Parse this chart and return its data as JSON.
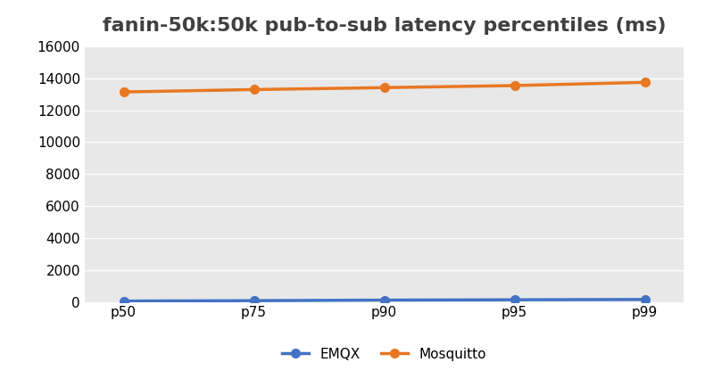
{
  "title": "fanin-50k:50k pub-to-sub latency percentiles (ms)",
  "categories": [
    "p50",
    "p75",
    "p90",
    "p95",
    "p99"
  ],
  "series": [
    {
      "label": "EMQX",
      "values": [
        50,
        75,
        110,
        130,
        150
      ],
      "color": "#4472C4",
      "marker": "o"
    },
    {
      "label": "Mosquitto",
      "values": [
        13150,
        13300,
        13420,
        13550,
        13750
      ],
      "color": "#E87722",
      "marker": "o"
    }
  ],
  "ylim": [
    0,
    16000
  ],
  "yticks": [
    0,
    2000,
    4000,
    6000,
    8000,
    10000,
    12000,
    14000,
    16000
  ],
  "plot_bg_color": "#E8E8E8",
  "fig_bg_color": "#FFFFFF",
  "grid_color": "#FFFFFF",
  "title_fontsize": 16,
  "legend_fontsize": 11,
  "tick_fontsize": 11,
  "title_color": "#404040"
}
